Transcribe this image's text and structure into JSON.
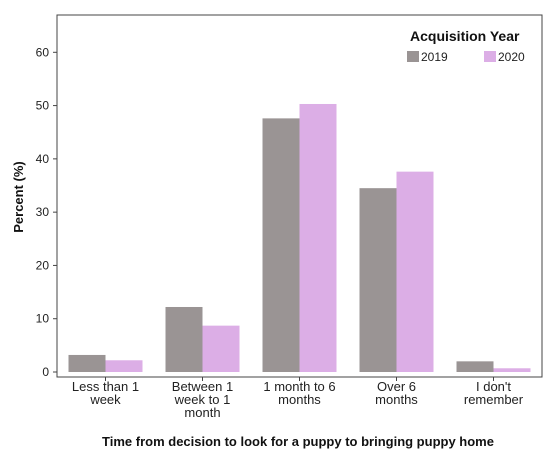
{
  "chart_data": {
    "type": "bar",
    "categories": [
      [
        "Less than 1",
        "week"
      ],
      [
        "Between 1",
        "week to 1",
        "month"
      ],
      [
        "1 month to 6",
        "months"
      ],
      [
        "Over 6",
        "months"
      ],
      [
        "I don't",
        "remember"
      ]
    ],
    "series": [
      {
        "name": "2019",
        "values": [
          3.2,
          12.2,
          47.6,
          34.5,
          2.0
        ],
        "color": "#9a9494"
      },
      {
        "name": "2020",
        "values": [
          2.2,
          8.7,
          50.3,
          37.6,
          0.7
        ],
        "color": "#dcaee6"
      }
    ],
    "xlabel": "Time from decision to look for a puppy to bringing puppy home",
    "ylabel": "Percent (%)",
    "ylim": [
      0,
      67
    ],
    "yticks": [
      0,
      10,
      20,
      30,
      40,
      50,
      60
    ],
    "legend": {
      "title": "Acquisition Year",
      "position": "top-right"
    },
    "grid": false
  }
}
